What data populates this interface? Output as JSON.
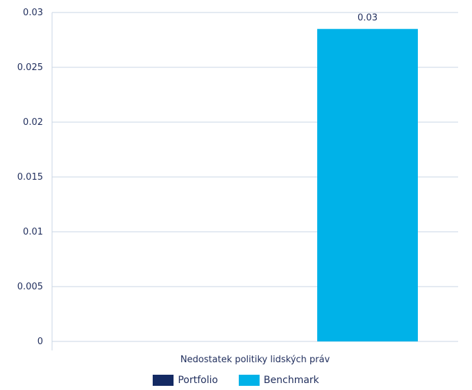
{
  "chart_data": {
    "type": "bar",
    "categories": [
      "Nedostatek politiky lidských práv"
    ],
    "series": [
      {
        "name": "Portfolio",
        "values": [
          0
        ],
        "color": "#142a63",
        "label": ""
      },
      {
        "name": "Benchmark",
        "values": [
          0.0285
        ],
        "color": "#00b2e8",
        "label": "0.03"
      }
    ],
    "ylim": [
      0,
      0.03
    ],
    "yticks": [
      "0",
      "0.005",
      "0.01",
      "0.015",
      "0.02",
      "0.025",
      "0.03"
    ],
    "grid": true,
    "legend_position": "bottom",
    "title": "",
    "xlabel": "",
    "ylabel": ""
  }
}
